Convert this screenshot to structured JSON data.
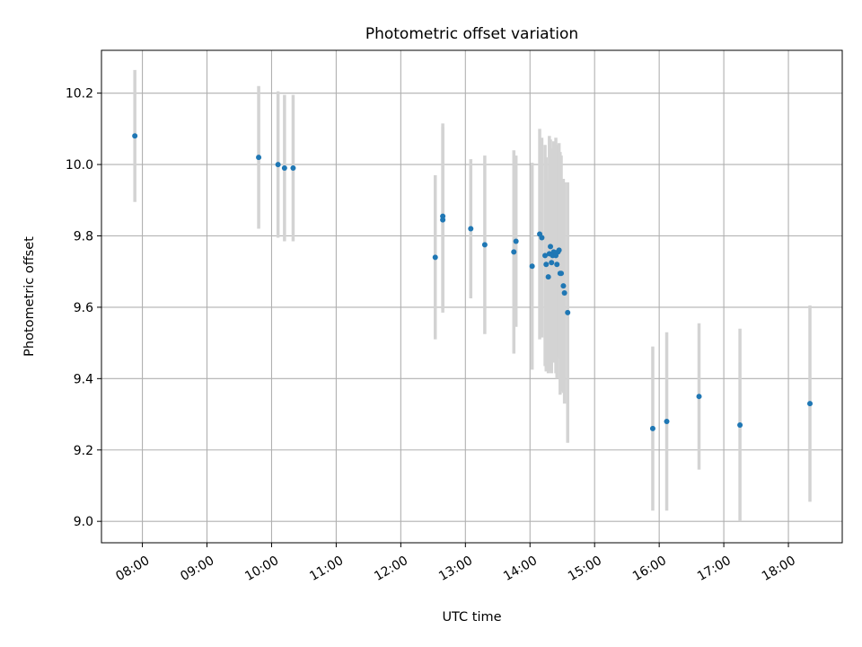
{
  "chart_data": {
    "type": "scatter",
    "title": "Photometric offset variation",
    "xlabel": "UTC time",
    "ylabel": "Photometric offset",
    "x_ticks": [
      "08:00",
      "09:00",
      "10:00",
      "11:00",
      "12:00",
      "13:00",
      "14:00",
      "15:00",
      "16:00",
      "17:00",
      "18:00"
    ],
    "y_ticks": [
      "9.0",
      "9.2",
      "9.4",
      "9.6",
      "9.8",
      "10.0",
      "10.2"
    ],
    "xlim": [
      "07:22",
      "18:50"
    ],
    "ylim": [
      8.94,
      10.32
    ],
    "grid": true,
    "colors": {
      "points": "#1f77b4",
      "errorbars": "#d3d3d3",
      "grid": "#b0b0b0"
    },
    "points": [
      {
        "x": "07:53",
        "y": 10.08,
        "err": 0.185
      },
      {
        "x": "09:48",
        "y": 10.02,
        "err": 0.2
      },
      {
        "x": "10:06",
        "y": 10.0,
        "err": 0.205
      },
      {
        "x": "10:12",
        "y": 9.99,
        "err": 0.205
      },
      {
        "x": "10:20",
        "y": 9.99,
        "err": 0.205
      },
      {
        "x": "12:32",
        "y": 9.74,
        "err": 0.23
      },
      {
        "x": "12:39",
        "y": 9.855,
        "err": 0.26
      },
      {
        "x": "12:39",
        "y": 9.845,
        "err": 0.26
      },
      {
        "x": "13:05",
        "y": 9.82,
        "err": 0.195
      },
      {
        "x": "13:18",
        "y": 9.775,
        "err": 0.25
      },
      {
        "x": "13:45",
        "y": 9.755,
        "err": 0.285
      },
      {
        "x": "13:47",
        "y": 9.785,
        "err": 0.24
      },
      {
        "x": "14:02",
        "y": 9.715,
        "err": 0.29
      },
      {
        "x": "14:09",
        "y": 9.805,
        "err": 0.295
      },
      {
        "x": "14:11",
        "y": 9.795,
        "err": 0.28
      },
      {
        "x": "14:14",
        "y": 9.745,
        "err": 0.31
      },
      {
        "x": "14:15",
        "y": 9.72,
        "err": 0.3
      },
      {
        "x": "14:17",
        "y": 9.685,
        "err": 0.27
      },
      {
        "x": "14:18",
        "y": 9.75,
        "err": 0.33
      },
      {
        "x": "14:19",
        "y": 9.77,
        "err": 0.3
      },
      {
        "x": "14:20",
        "y": 9.725,
        "err": 0.31
      },
      {
        "x": "14:21",
        "y": 9.745,
        "err": 0.3
      },
      {
        "x": "14:22",
        "y": 9.755,
        "err": 0.31
      },
      {
        "x": "14:24",
        "y": 9.745,
        "err": 0.33
      },
      {
        "x": "14:25",
        "y": 9.72,
        "err": 0.32
      },
      {
        "x": "14:26",
        "y": 9.755,
        "err": 0.3
      },
      {
        "x": "14:27",
        "y": 9.76,
        "err": 0.3
      },
      {
        "x": "14:28",
        "y": 9.695,
        "err": 0.34
      },
      {
        "x": "14:29",
        "y": 9.695,
        "err": 0.33
      },
      {
        "x": "14:31",
        "y": 9.66,
        "err": 0.3
      },
      {
        "x": "14:32",
        "y": 9.64,
        "err": 0.31
      },
      {
        "x": "14:35",
        "y": 9.585,
        "err": 0.365
      },
      {
        "x": "15:54",
        "y": 9.26,
        "err": 0.23
      },
      {
        "x": "16:07",
        "y": 9.28,
        "err": 0.25
      },
      {
        "x": "16:37",
        "y": 9.35,
        "err": 0.205
      },
      {
        "x": "17:15",
        "y": 9.27,
        "err": 0.27
      },
      {
        "x": "18:20",
        "y": 9.33,
        "err": 0.275
      }
    ]
  }
}
